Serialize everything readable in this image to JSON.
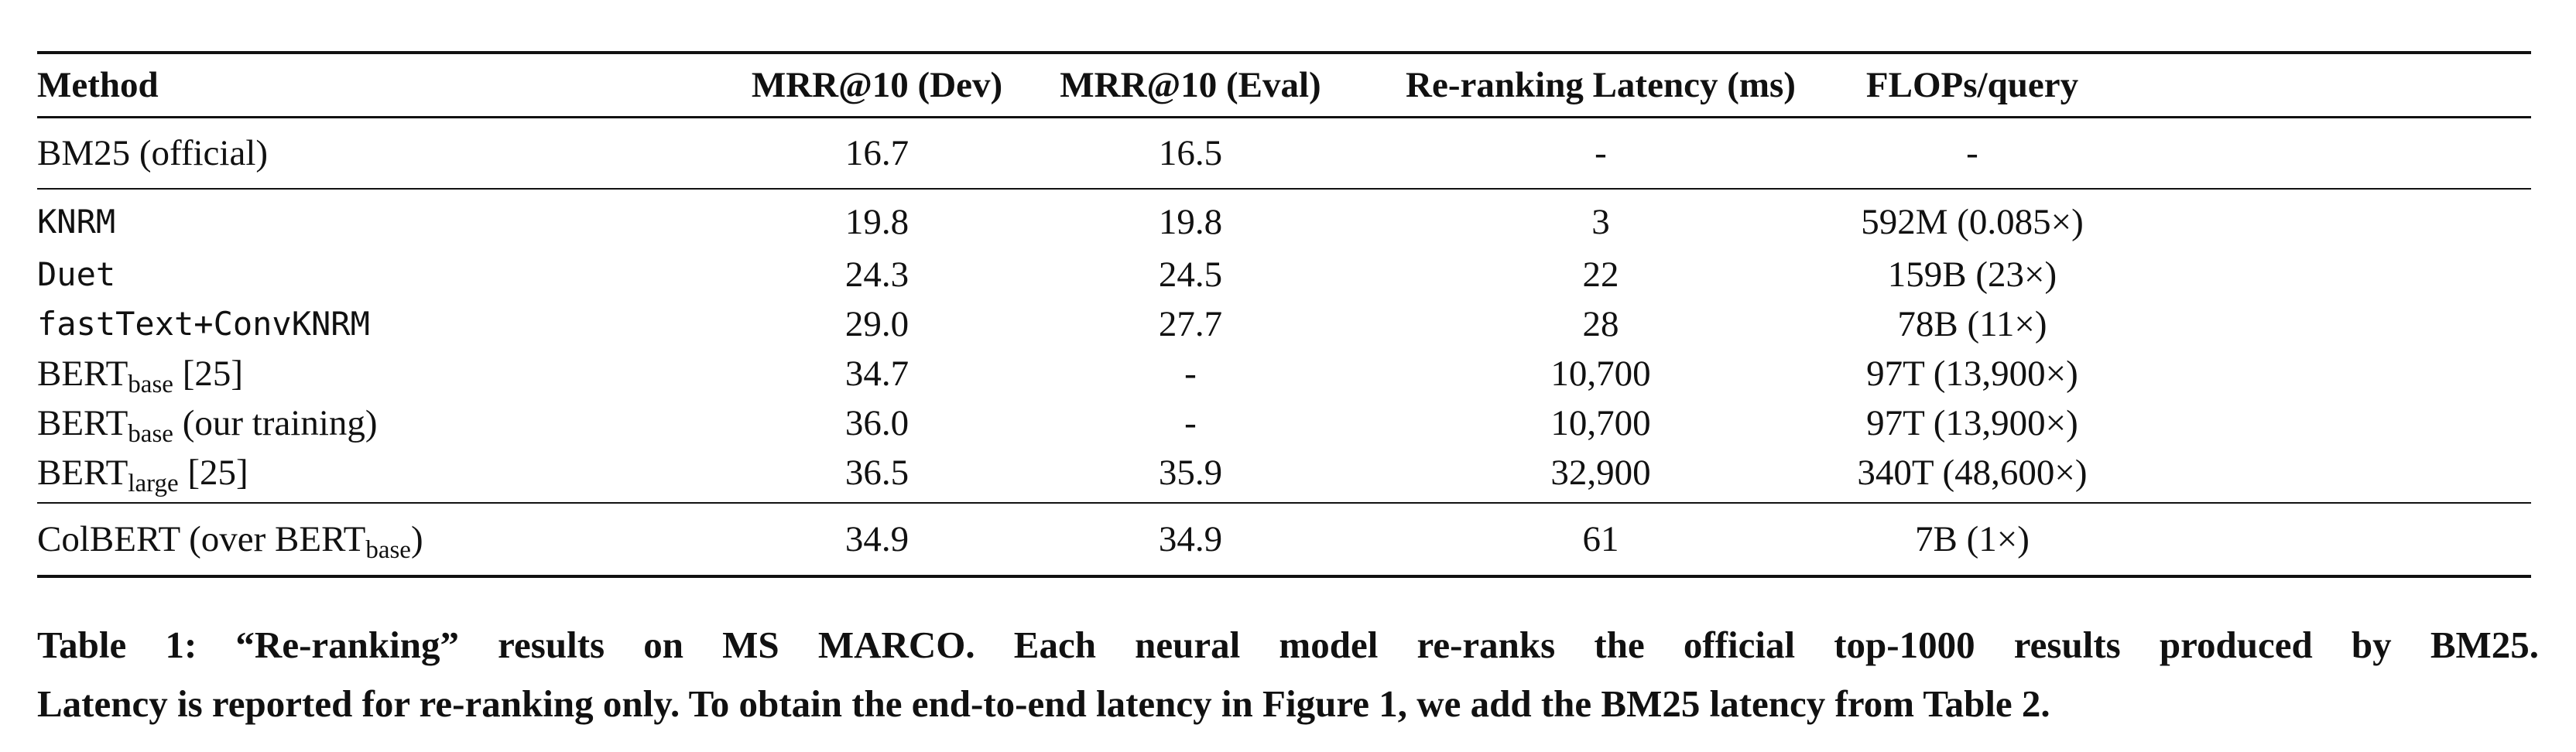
{
  "table": {
    "headers": {
      "method": "Method",
      "dev": "MRR@10 (Dev)",
      "eval": "MRR@10 (Eval)",
      "latency": "Re-ranking Latency (ms)",
      "flops": "FLOPs/query"
    },
    "rows": [
      {
        "method": "BM25 (official)",
        "dev": "16.7",
        "eval": "16.5",
        "latency": "-",
        "flops": "-"
      },
      {
        "method": "KNRM",
        "dev": "19.8",
        "eval": "19.8",
        "latency": "3",
        "flops": "592M (0.085×)"
      },
      {
        "method": "Duet",
        "dev": "24.3",
        "eval": "24.5",
        "latency": "22",
        "flops": "159B (23×)"
      },
      {
        "method": "fastText+ConvKNRM",
        "dev": "29.0",
        "eval": "27.7",
        "latency": "28",
        "flops": "78B (11×)"
      },
      {
        "method_main": "BERT",
        "method_sub": "base",
        "method_suffix": " [25]",
        "dev": "34.7",
        "eval": "-",
        "latency": "10,700",
        "flops": "97T (13,900×)"
      },
      {
        "method_main": "BERT",
        "method_sub": "base",
        "method_suffix": " (our training)",
        "dev": "36.0",
        "eval": "-",
        "latency": "10,700",
        "flops": "97T (13,900×)"
      },
      {
        "method_main": "BERT",
        "method_sub": "large",
        "method_suffix": " [25]",
        "dev": "36.5",
        "eval": "35.9",
        "latency": "32,900",
        "flops": "340T (48,600×)"
      },
      {
        "method_main": "ColBERT (over BERT",
        "method_sub": "base",
        "method_suffix": ")",
        "dev": "34.9",
        "eval": "34.9",
        "latency": "61",
        "flops": "7B (1×)"
      }
    ]
  },
  "caption": {
    "line1": "Table 1: “Re-ranking” results on MS MARCO. Each neural model re-ranks the official top-1000 results produced by BM25.",
    "line2": "Latency is reported for re-ranking only. To obtain the end-to-end latency in Figure 1, we add the BM25 latency from Table 2."
  }
}
